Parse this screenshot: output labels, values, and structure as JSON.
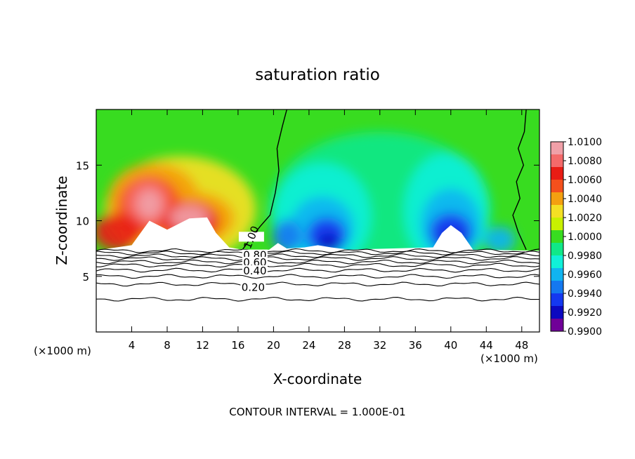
{
  "chart_data": {
    "type": "heatmap",
    "title": "saturation ratio",
    "xlabel": "X-coordinate",
    "ylabel": "Z-coordinate",
    "x_unit_left": "(×1000 m)",
    "x_unit_right": "(×1000 m)",
    "xlim": [
      0,
      50
    ],
    "ylim": [
      0,
      20
    ],
    "xticks": [
      "4",
      "8",
      "12",
      "16",
      "20",
      "24",
      "28",
      "32",
      "36",
      "40",
      "44",
      "48"
    ],
    "xtick_values": [
      4,
      8,
      12,
      16,
      20,
      24,
      28,
      32,
      36,
      40,
      44,
      48
    ],
    "yticks": [
      "5",
      "10",
      "15"
    ],
    "ytick_values": [
      5,
      10,
      15
    ],
    "footer": "CONTOUR INTERVAL = 1.000E-01",
    "colorbar": {
      "labels": [
        "1.0100",
        "1.0080",
        "1.0060",
        "1.0040",
        "1.0020",
        "1.0000",
        "0.9980",
        "0.9960",
        "0.9940",
        "0.9920",
        "0.9900"
      ],
      "values": [
        1.01,
        1.008,
        1.006,
        1.004,
        1.002,
        1.0,
        0.998,
        0.996,
        0.994,
        0.992,
        0.99
      ],
      "colors": [
        "#f0a0a8",
        "#f46a6a",
        "#e81c14",
        "#f4501c",
        "#f4a010",
        "#f4e024",
        "#c8f000",
        "#38dc20",
        "#10e888",
        "#10f0d8",
        "#10b4f0",
        "#1478f0",
        "#1438f0",
        "#0c08c0",
        "#700098"
      ]
    },
    "contour_labels": [
      {
        "text": "1.00",
        "x": 17.5,
        "z": 8.5
      },
      {
        "text": "0.80",
        "x": 17.9,
        "z": 6.9
      },
      {
        "text": "0.60",
        "x": 17.9,
        "z": 6.25
      },
      {
        "text": "0.40",
        "x": 17.9,
        "z": 5.5
      },
      {
        "text": "0.20",
        "x": 17.7,
        "z": 4.0
      }
    ],
    "contour_levels": [
      1.0,
      0.9,
      0.8,
      0.7,
      0.6,
      0.5,
      0.4,
      0.3,
      0.2,
      0.1
    ],
    "contour_base_z": [
      7.3,
      7.1,
      6.85,
      6.6,
      6.3,
      6.0,
      5.55,
      5.0,
      4.3,
      2.95
    ],
    "warm_maxima": [
      {
        "x": 6.0,
        "z": 12.5,
        "value": 1.01
      },
      {
        "x": 10.5,
        "z": 10.9,
        "value": 1.009
      },
      {
        "x": 14.5,
        "z": 9.7,
        "value": 1.006
      }
    ],
    "cold_minima": [
      {
        "x": 21.5,
        "z": 8.6,
        "value": 0.992
      },
      {
        "x": 26.0,
        "z": 9.6,
        "value": 0.99
      },
      {
        "x": 40.0,
        "z": 10.0,
        "value": 0.99
      },
      {
        "x": 45.0,
        "z": 8.3,
        "value": 0.994
      }
    ],
    "grid": false,
    "legend": "colorbar right"
  }
}
